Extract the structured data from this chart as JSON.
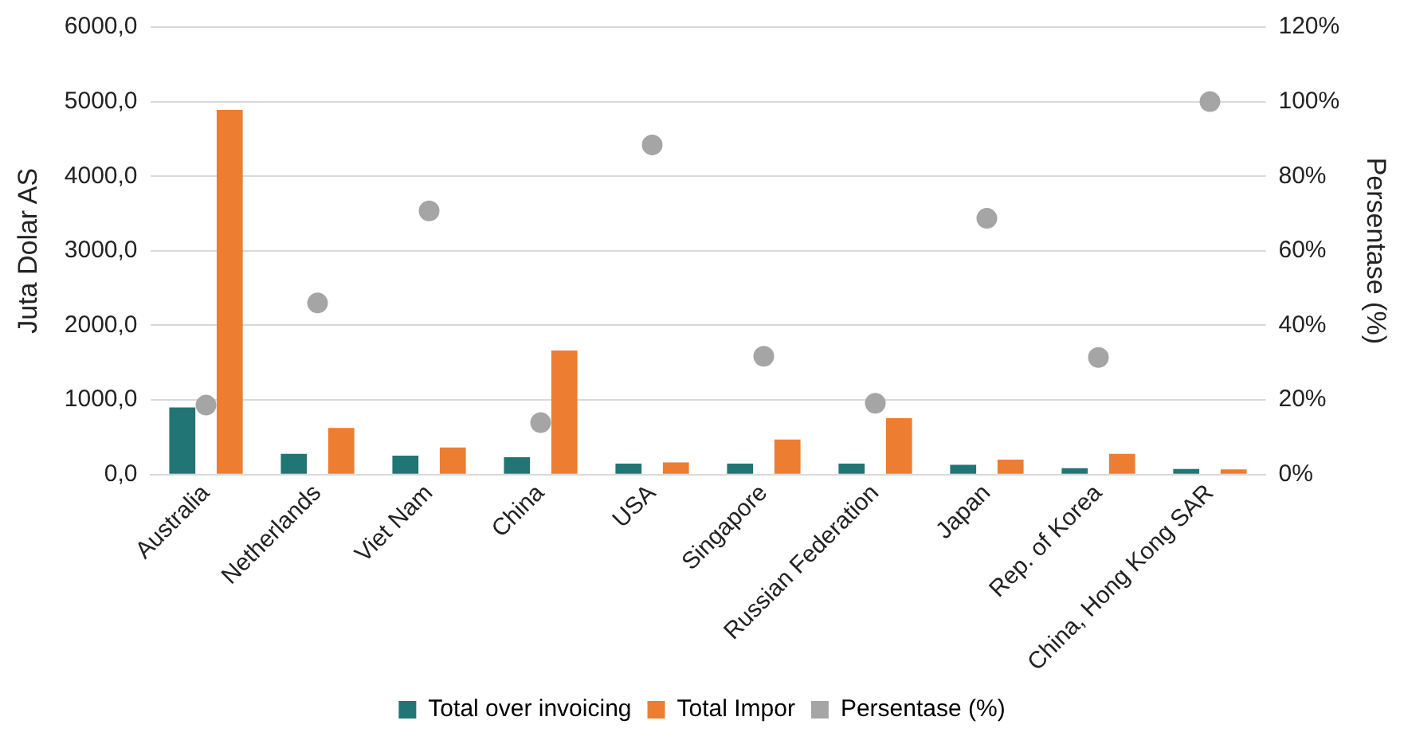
{
  "chart_data": {
    "type": "bar",
    "categories": [
      "Australia",
      "Netherlands",
      "Viet Nam",
      "China",
      "USA",
      "Singapore",
      "Russian Federation",
      "Japan",
      "Rep. of Korea",
      "China, Hong Kong SAR"
    ],
    "ylabel": "Juta Dolar AS",
    "y2label": "Persentase (%)",
    "series": [
      {
        "name": "Total over invoicing",
        "color": "#227575",
        "values": [
          900,
          277,
          254,
          231,
          145,
          145,
          145,
          130,
          85,
          75
        ]
      },
      {
        "name": "Total Impor",
        "color": "#ed7d31",
        "values": [
          4890,
          623,
          362,
          1663,
          162,
          469,
          755,
          200,
          277,
          69
        ]
      },
      {
        "name": "Persentase (%)",
        "type": "scatter",
        "axis": "y2",
        "color": "#a5a5a5",
        "values": [
          18.6,
          46,
          70.7,
          13.9,
          88.4,
          31.7,
          19.1,
          68.7,
          31.4,
          100
        ]
      }
    ],
    "ylim": [
      0,
      6000
    ],
    "yticks": [
      {
        "value": 0,
        "label": "0,0"
      },
      {
        "value": 1000,
        "label": "1000,0"
      },
      {
        "value": 2000,
        "label": "2000,0"
      },
      {
        "value": 3000,
        "label": "3000,0"
      },
      {
        "value": 4000,
        "label": "4000,0"
      },
      {
        "value": 5000,
        "label": "5000,0"
      },
      {
        "value": 6000,
        "label": "6000,0"
      }
    ],
    "y2lim": [
      0,
      120
    ],
    "y2ticks": [
      {
        "value": 0,
        "label": "0%"
      },
      {
        "value": 20,
        "label": "20%"
      },
      {
        "value": 40,
        "label": "40%"
      },
      {
        "value": 60,
        "label": "60%"
      },
      {
        "value": 80,
        "label": "80%"
      },
      {
        "value": 100,
        "label": "100%"
      },
      {
        "value": 120,
        "label": "120%"
      }
    ],
    "grid": "y",
    "legend": "bottom",
    "marker": "circle"
  }
}
